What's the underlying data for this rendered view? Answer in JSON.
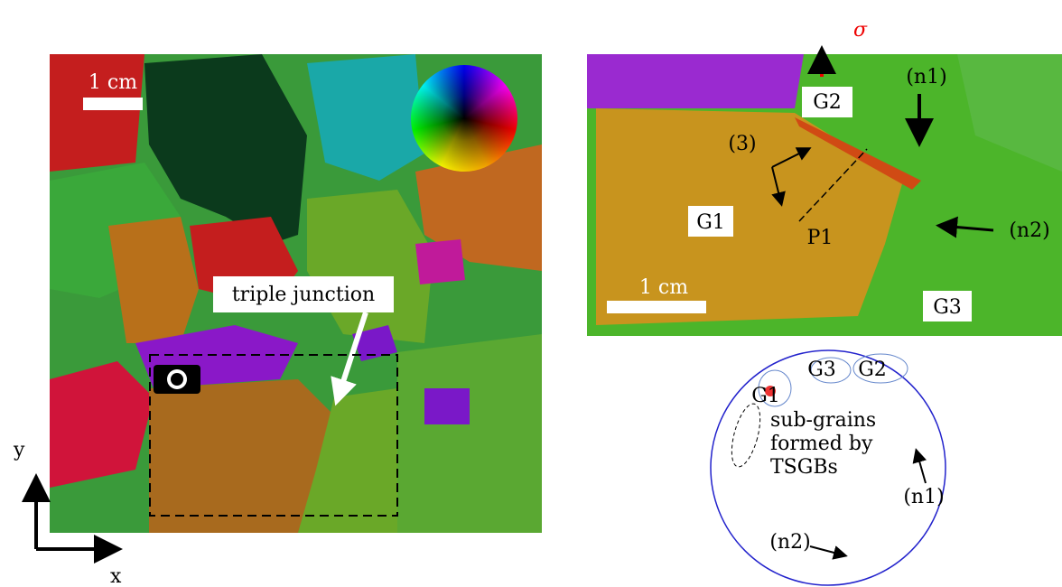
{
  "left_map": {
    "scale_bar": "1 cm",
    "annotation": "triple junction",
    "axes": {
      "x": "x",
      "y": "y"
    }
  },
  "right_map": {
    "stress": "σ",
    "scale_bar": "1 cm",
    "labels": {
      "n1": "(n1)",
      "n2": "(n2)",
      "g1": "G1",
      "g2": "G2",
      "g3": "G3",
      "three": "(3)",
      "p1": "P1"
    }
  },
  "pole_figure": {
    "labels": {
      "g1": "G1",
      "g2": "G2",
      "g3": "G3",
      "n1": "(n1)",
      "n2": "(n2)"
    },
    "note": [
      "sub-grains",
      "formed by",
      "TSGBs"
    ]
  }
}
